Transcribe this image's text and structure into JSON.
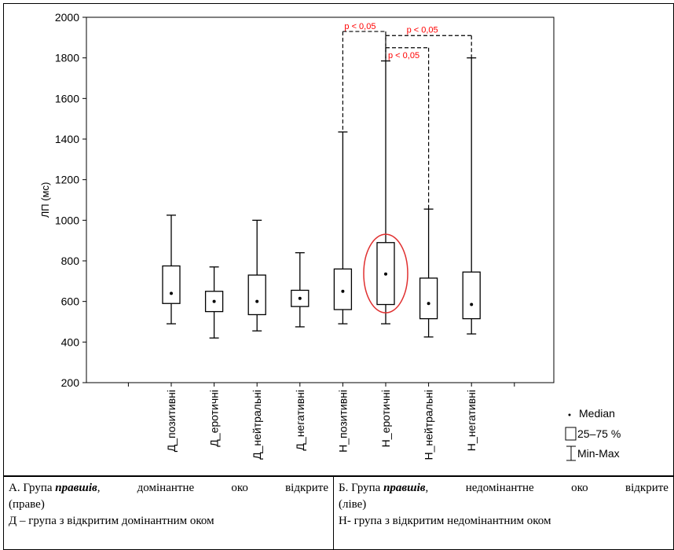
{
  "chart_data": {
    "type": "boxplot",
    "ylabel": "ЛП (мс)",
    "ylim": [
      200,
      2000
    ],
    "yticks": [
      200,
      400,
      600,
      800,
      1000,
      1200,
      1400,
      1600,
      1800,
      2000
    ],
    "categories": [
      "Д_позитивні",
      "Д_еротичні",
      "Д_нейтральні",
      "Д_негативні",
      "Н_позитивні",
      "Н_еротичні",
      "Н_нейтральні",
      "Н_негативні"
    ],
    "boxes": [
      {
        "category": "Д_позитивні",
        "min": 490,
        "q1": 590,
        "median": 640,
        "q3": 775,
        "max": 1025
      },
      {
        "category": "Д_еротичні",
        "min": 420,
        "q1": 550,
        "median": 600,
        "q3": 650,
        "max": 770
      },
      {
        "category": "Д_нейтральні",
        "min": 455,
        "q1": 535,
        "median": 600,
        "q3": 730,
        "max": 1000
      },
      {
        "category": "Д_негативні",
        "min": 475,
        "q1": 575,
        "median": 615,
        "q3": 655,
        "max": 840
      },
      {
        "category": "Н_позитивні",
        "min": 490,
        "q1": 560,
        "median": 650,
        "q3": 760,
        "max": 1435
      },
      {
        "category": "Н_еротичні",
        "min": 490,
        "q1": 585,
        "median": 735,
        "q3": 890,
        "max": 1785
      },
      {
        "category": "Н_нейтральні",
        "min": 425,
        "q1": 515,
        "median": 590,
        "q3": 715,
        "max": 1055
      },
      {
        "category": "Н_негативні",
        "min": 440,
        "q1": 515,
        "median": 585,
        "q3": 745,
        "max": 1800
      }
    ],
    "highlight": {
      "category": "Н_еротичні",
      "color": "#e03030"
    },
    "significance": [
      {
        "from": "Н_позитивні",
        "to": "Н_еротичні",
        "label": "p < 0,05",
        "y": 1930
      },
      {
        "from": "Н_еротичні",
        "to": "Н_негативні",
        "label": "p < 0,05",
        "y": 1910
      },
      {
        "from": "Н_еротичні",
        "to": "Н_нейтральні",
        "label": "p < 0,05",
        "y": 1850
      }
    ],
    "legend": {
      "placement": "bottom-right",
      "entries": [
        "Median",
        "25–75 %",
        "Min-Max"
      ]
    },
    "grid": false
  },
  "caption": {
    "left": {
      "line1_prefix": "А. Група",
      "line1_emph": "правшів",
      "line1_rest_words": [
        ",",
        "домінантне",
        "око",
        "відкрите"
      ],
      "line2": "(праве)",
      "line3": "Д – група з відкритим домінантним оком"
    },
    "right": {
      "line1_prefix": "Б. Група",
      "line1_emph": "правшів",
      "line1_rest_words": [
        ",",
        "недомінантне",
        "око",
        "відкрите"
      ],
      "line2": "(ліве)",
      "line3": "Н- група з відкритим недомінантним оком"
    }
  },
  "colors": {
    "significance": "#ff0000",
    "highlight_ring": "#e03030",
    "ink": "#000000"
  }
}
